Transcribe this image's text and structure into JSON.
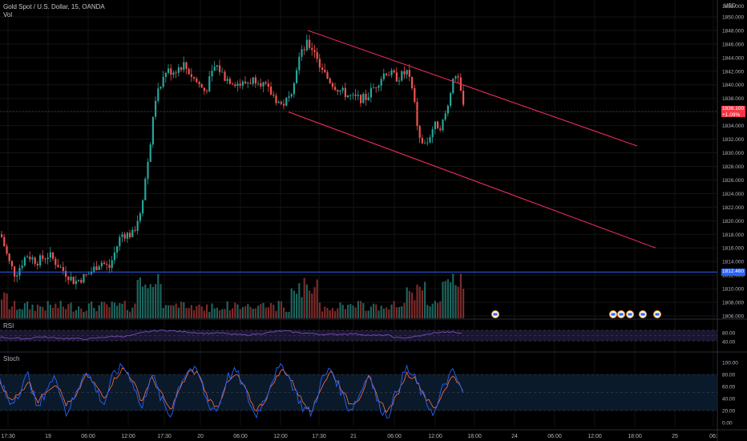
{
  "header": {
    "symbol": "Gold Spot / U.S. Dollar, 15, OANDA",
    "volume_label": "Vol",
    "currency": "USD"
  },
  "price_axis": {
    "top_label": "1852.000",
    "ticks": [
      "1850.000",
      "1848.000",
      "1846.000",
      "1844.000",
      "1842.000",
      "1840.000",
      "1838.000",
      "1836.000",
      "1834.000",
      "1832.000",
      "1830.000",
      "1828.000",
      "1826.000",
      "1824.000",
      "1822.000",
      "1820.000",
      "1818.000",
      "1816.000",
      "1814.000",
      "1812.000",
      "1810.000",
      "1808.000",
      "1806.000"
    ]
  },
  "last_price": {
    "price": "1836.100",
    "change": "+1.09%",
    "color": "#f23645"
  },
  "horizontal_line": {
    "price": "1812.460",
    "color": "#2962ff"
  },
  "rsi": {
    "label": "RSI",
    "ticks": [
      "80.00",
      "40.00"
    ]
  },
  "stoch": {
    "label": "Stoch",
    "ticks": [
      "100.00",
      "80.00",
      "60.00",
      "40.00",
      "20.00",
      "0.00"
    ]
  },
  "time_axis": [
    "17:30",
    "19",
    "06:00",
    "12:00",
    "17:30",
    "20",
    "06:00",
    "12:00",
    "17:30",
    "21",
    "06:00",
    "12:00",
    "18:00",
    "24",
    "06:00",
    "12:00",
    "18:00",
    "25",
    "06:"
  ],
  "colors": {
    "up": "#26a69a",
    "down": "#ef5350",
    "channel": "#ff2e63",
    "rsi_line": "#7e57c2",
    "stoch_k": "#2962ff",
    "stoch_d": "#ff7043"
  },
  "chart_data": [
    {
      "type": "candlestick",
      "title": "Gold Spot / U.S. Dollar, 15, OANDA",
      "ylim": [
        1805,
        1852
      ],
      "path": [
        [
          0,
          1818
        ],
        [
          10,
          1814
        ],
        [
          18,
          1812
        ],
        [
          32,
          1815
        ],
        [
          45,
          1814
        ],
        [
          60,
          1815
        ],
        [
          75,
          1813
        ],
        [
          92,
          1811
        ],
        [
          108,
          1812
        ],
        [
          125,
          1814
        ],
        [
          135,
          1813
        ],
        [
          150,
          1818
        ],
        [
          165,
          1818
        ],
        [
          175,
          1822
        ],
        [
          185,
          1830
        ],
        [
          193,
          1838
        ],
        [
          200,
          1840
        ],
        [
          205,
          1842
        ],
        [
          215,
          1842
        ],
        [
          228,
          1843
        ],
        [
          240,
          1841
        ],
        [
          255,
          1839
        ],
        [
          268,
          1843
        ],
        [
          280,
          1841
        ],
        [
          300,
          1840
        ],
        [
          320,
          1841
        ],
        [
          335,
          1839
        ],
        [
          350,
          1837
        ],
        [
          360,
          1838
        ],
        [
          372,
          1844
        ],
        [
          382,
          1846
        ],
        [
          392,
          1845
        ],
        [
          400,
          1842
        ],
        [
          415,
          1840
        ],
        [
          425,
          1839
        ],
        [
          440,
          1838
        ],
        [
          455,
          1838
        ],
        [
          468,
          1840
        ],
        [
          480,
          1842
        ],
        [
          495,
          1841
        ],
        [
          508,
          1842
        ],
        [
          515,
          1838
        ],
        [
          522,
          1832
        ],
        [
          530,
          1831
        ],
        [
          540,
          1834
        ],
        [
          550,
          1834
        ],
        [
          558,
          1837
        ],
        [
          565,
          1842
        ],
        [
          572,
          1840
        ],
        [
          578,
          1836.1
        ]
      ],
      "y_range_shown": [
        1806,
        1852
      ],
      "last_price": 1836.1,
      "horizontal_level": 1812.46,
      "drawing": {
        "type": "descending channel",
        "upper_start": 1848,
        "lower_start": 1836
      }
    },
    {
      "type": "bar",
      "title": "Vol",
      "description": "volume bars, higher activity near the breakout rally and at the right edge"
    },
    {
      "type": "line",
      "title": "RSI",
      "ylim": [
        0,
        100
      ],
      "levels": [
        70,
        30
      ],
      "tick_labels": [
        80,
        40
      ],
      "series": [
        {
          "name": "RSI",
          "values": [
            44,
            40,
            38,
            45,
            42,
            40,
            38,
            37,
            44,
            47,
            48,
            60,
            68,
            70,
            65,
            62,
            58,
            60,
            55,
            52,
            56,
            62,
            68,
            62,
            58,
            55,
            54,
            57,
            55,
            50,
            52,
            40,
            44,
            52,
            62,
            63,
            58
          ]
        }
      ]
    },
    {
      "type": "line",
      "title": "Stoch",
      "ylim": [
        0,
        100
      ],
      "levels": [
        80,
        20
      ],
      "series": [
        {
          "name": "%K",
          "values": [
            70,
            30,
            50,
            80,
            20,
            60,
            75,
            15,
            45,
            90,
            60,
            30,
            80,
            95,
            70,
            20,
            85,
            40,
            10,
            65,
            90,
            80,
            30,
            20,
            75,
            85,
            50,
            10,
            40,
            80,
            95,
            60,
            25,
            15,
            70,
            90,
            55,
            20,
            45,
            85,
            30,
            10,
            55,
            90,
            70,
            35,
            15,
            65,
            85,
            45
          ]
        },
        {
          "name": "%D",
          "values": [
            65,
            40,
            45,
            70,
            35,
            55,
            65,
            30,
            40,
            80,
            65,
            40,
            70,
            90,
            72,
            35,
            75,
            50,
            20,
            55,
            85,
            82,
            40,
            25,
            65,
            80,
            55,
            20,
            35,
            70,
            90,
            65,
            35,
            20,
            60,
            85,
            60,
            30,
            40,
            75,
            40,
            18,
            45,
            82,
            72,
            42,
            22,
            55,
            80,
            50
          ]
        }
      ]
    }
  ]
}
